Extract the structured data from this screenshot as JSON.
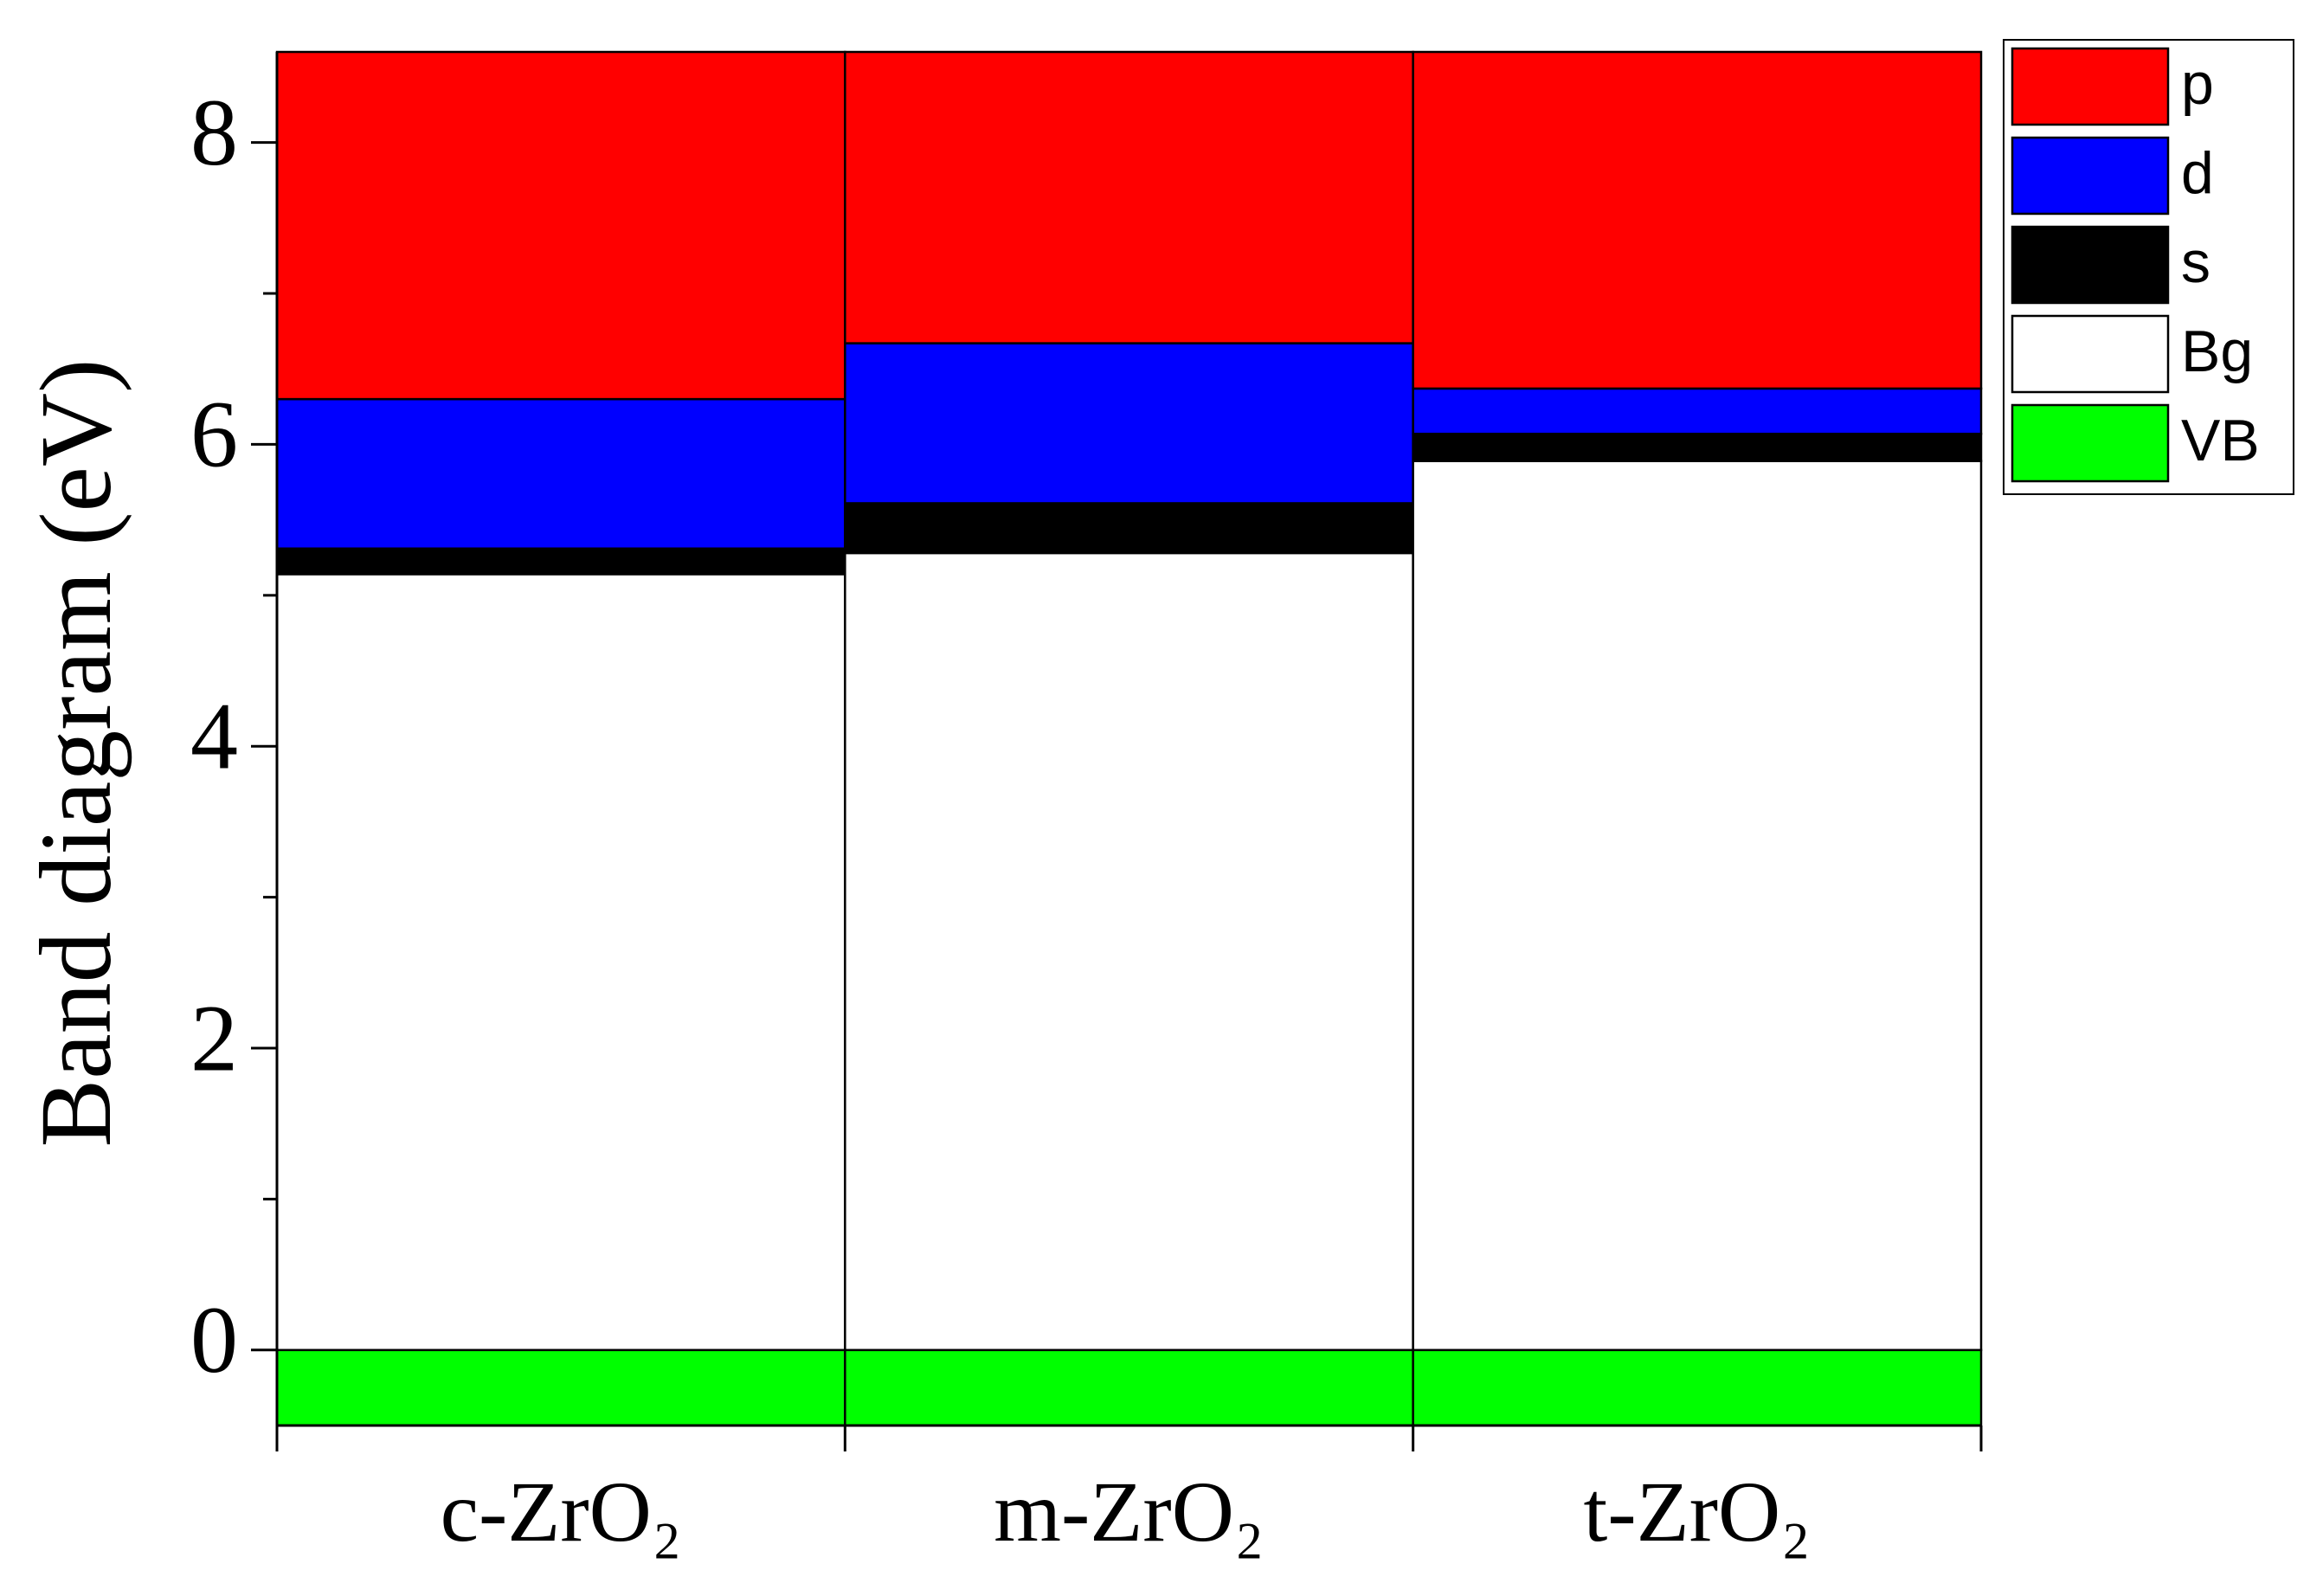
{
  "chart_data": {
    "type": "stacked-bar",
    "y_label": "Band diagram (eV)",
    "categories": [
      "c-ZrO₂",
      "m-ZrO₂",
      "t-ZrO₂"
    ],
    "series": [
      {
        "name": "VB",
        "color": "#00ff00",
        "values": [
          -0.5,
          -0.5,
          -0.5
        ]
      },
      {
        "name": "Bg",
        "color": "#ffffff",
        "values": [
          5.14,
          5.28,
          5.89
        ]
      },
      {
        "name": "s",
        "color": "#000000",
        "values": [
          0.17,
          0.33,
          0.18
        ]
      },
      {
        "name": "d",
        "color": "#0000ff",
        "values": [
          0.99,
          1.06,
          0.3
        ]
      },
      {
        "name": "p",
        "color": "#ff0000",
        "values": [
          2.3,
          1.93,
          2.23
        ]
      }
    ],
    "ylim": [
      -0.5,
      8.6
    ],
    "yticks": [
      0,
      2,
      4,
      6,
      8
    ],
    "minor_yticks": [
      1,
      3,
      5,
      7
    ],
    "legend": "outside-right-top"
  }
}
